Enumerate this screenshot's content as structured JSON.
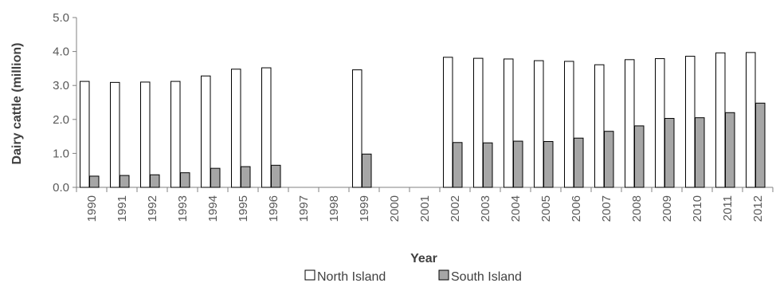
{
  "chart_data": {
    "type": "bar",
    "title": "",
    "xlabel": "Year",
    "ylabel": "Dairy cattle (million)",
    "ylim": [
      0,
      5.0
    ],
    "yticks": [
      "0.0",
      "1.0",
      "2.0",
      "3.0",
      "4.0",
      "5.0"
    ],
    "grid": false,
    "legend_position": "bottom",
    "categories": [
      "1990",
      "1991",
      "1992",
      "1993",
      "1994",
      "1995",
      "1996",
      "1997",
      "1998",
      "1999",
      "2000",
      "2001",
      "2002",
      "2003",
      "2004",
      "2005",
      "2006",
      "2007",
      "2008",
      "2009",
      "2010",
      "2011",
      "2012"
    ],
    "series": [
      {
        "name": "North Island",
        "color": "#ffffff",
        "values": [
          3.12,
          3.09,
          3.1,
          3.12,
          3.28,
          3.48,
          3.52,
          null,
          null,
          3.46,
          null,
          null,
          3.83,
          3.8,
          3.78,
          3.73,
          3.71,
          3.61,
          3.76,
          3.79,
          3.86,
          3.96,
          3.97
        ]
      },
      {
        "name": "South Island",
        "color": "#a6a6a6",
        "values": [
          0.33,
          0.35,
          0.37,
          0.43,
          0.56,
          0.61,
          0.65,
          null,
          null,
          0.98,
          null,
          null,
          1.32,
          1.31,
          1.36,
          1.35,
          1.45,
          1.65,
          1.81,
          2.03,
          2.05,
          2.2,
          2.48
        ]
      }
    ]
  }
}
